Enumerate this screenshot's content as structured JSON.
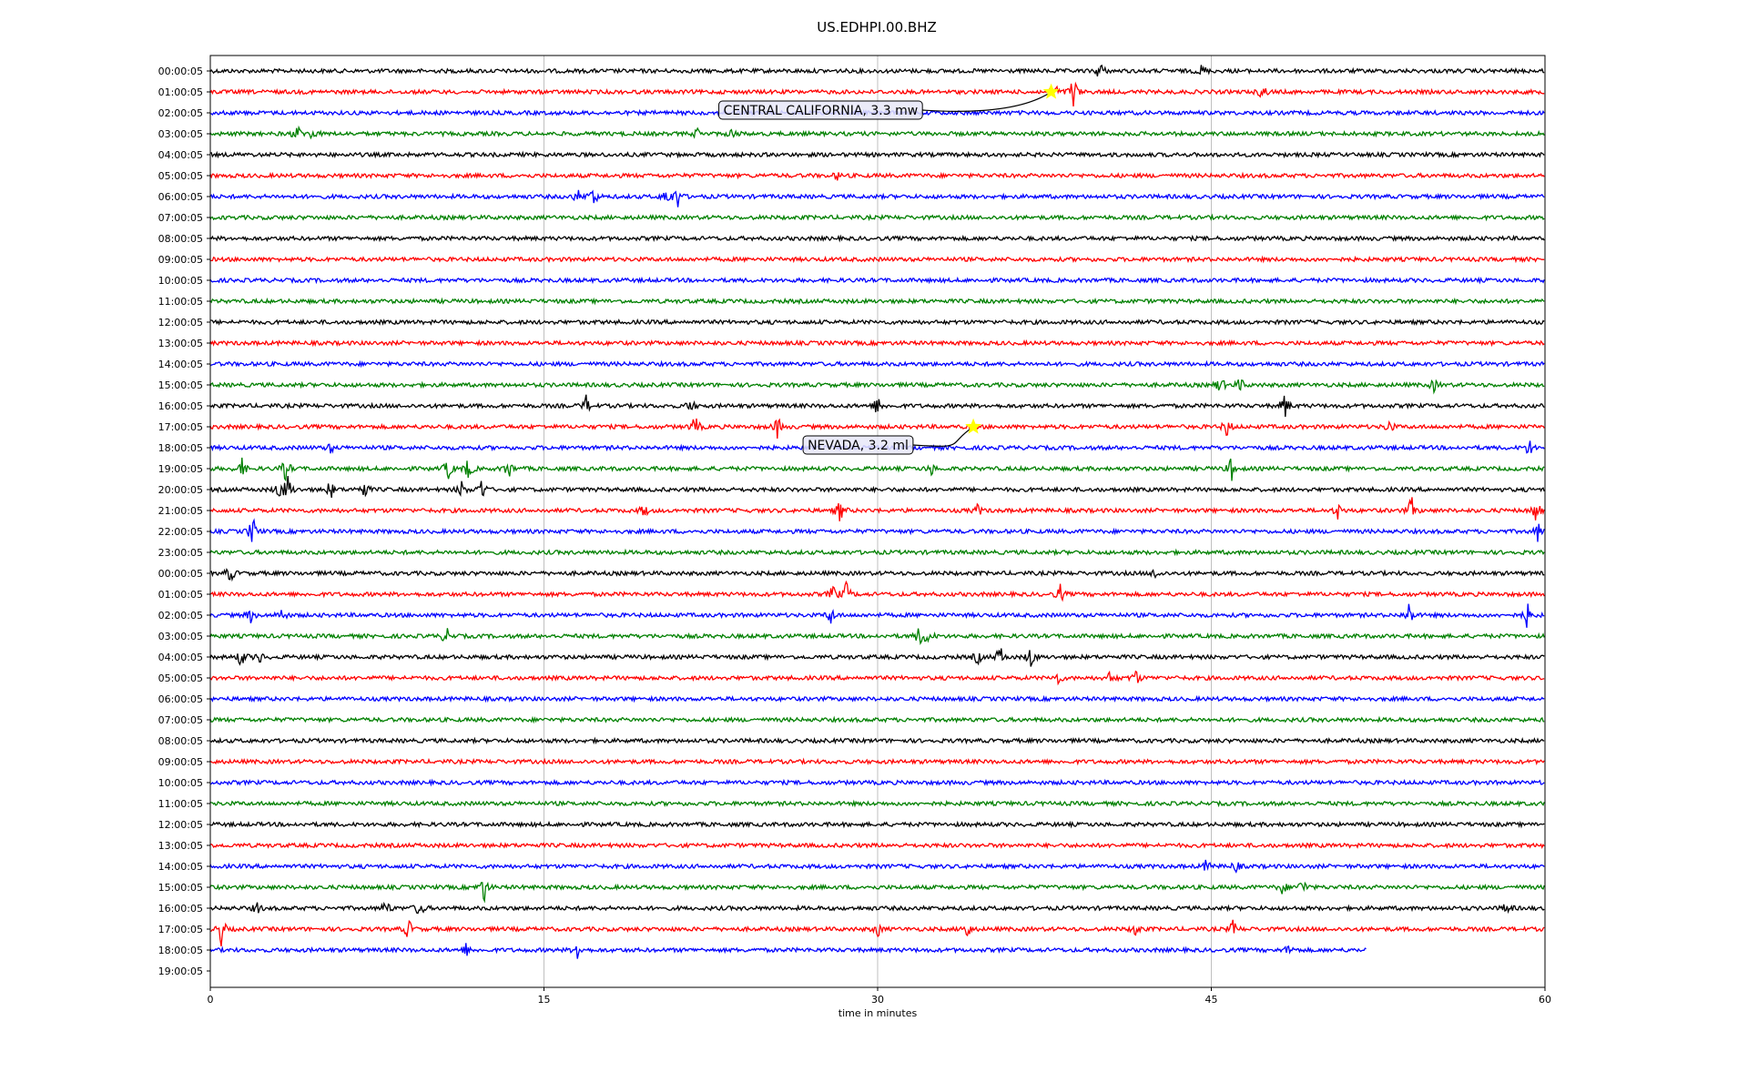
{
  "chart_data": {
    "type": "line",
    "title": "US.EDHPI.00.BHZ",
    "xlabel": "time in minutes",
    "ylabel": "",
    "xlim": [
      0,
      60
    ],
    "xticks": [
      0,
      15,
      30,
      45,
      60
    ],
    "grid": "vertical",
    "row_colors": [
      "#000000",
      "#ff0000",
      "#0000ff",
      "#008000"
    ],
    "row_labels": [
      "00:00:05",
      "01:00:05",
      "02:00:05",
      "03:00:05",
      "04:00:05",
      "05:00:05",
      "06:00:05",
      "07:00:05",
      "08:00:05",
      "09:00:05",
      "10:00:05",
      "11:00:05",
      "12:00:05",
      "13:00:05",
      "14:00:05",
      "15:00:05",
      "16:00:05",
      "17:00:05",
      "18:00:05",
      "19:00:05",
      "20:00:05",
      "21:00:05",
      "22:00:05",
      "23:00:05",
      "00:00:05",
      "01:00:05",
      "02:00:05",
      "03:00:05",
      "04:00:05",
      "05:00:05",
      "06:00:05",
      "07:00:05",
      "08:00:05",
      "09:00:05",
      "10:00:05",
      "11:00:05",
      "12:00:05",
      "13:00:05",
      "14:00:05",
      "15:00:05",
      "16:00:05",
      "17:00:05",
      "18:00:05",
      "19:00:05"
    ],
    "last_trace_end_minute": 52,
    "events": [
      {
        "row": 0,
        "minute": 40.0,
        "amp": 0.9
      },
      {
        "row": 0,
        "minute": 44.6,
        "amp": 0.6
      },
      {
        "row": 1,
        "minute": 38.0,
        "amp": 0.6
      },
      {
        "row": 1,
        "minute": 38.8,
        "amp": 1.6
      },
      {
        "row": 1,
        "minute": 47.3,
        "amp": 0.7
      },
      {
        "row": 3,
        "minute": 3.9,
        "amp": 0.8
      },
      {
        "row": 3,
        "minute": 4.6,
        "amp": 0.5
      },
      {
        "row": 3,
        "minute": 21.9,
        "amp": 0.4
      },
      {
        "row": 3,
        "minute": 23.5,
        "amp": 0.5
      },
      {
        "row": 5,
        "minute": 28.2,
        "amp": 0.3
      },
      {
        "row": 6,
        "minute": 16.5,
        "amp": 0.6
      },
      {
        "row": 6,
        "minute": 17.2,
        "amp": 1.0
      },
      {
        "row": 6,
        "minute": 20.5,
        "amp": 0.8
      },
      {
        "row": 6,
        "minute": 21.0,
        "amp": 1.0
      },
      {
        "row": 15,
        "minute": 45.4,
        "amp": 0.8
      },
      {
        "row": 15,
        "minute": 46.3,
        "amp": 0.6
      },
      {
        "row": 15,
        "minute": 55.0,
        "amp": 0.5
      },
      {
        "row": 16,
        "minute": 16.9,
        "amp": 0.8
      },
      {
        "row": 16,
        "minute": 21.6,
        "amp": 0.6
      },
      {
        "row": 16,
        "minute": 30.0,
        "amp": 0.9
      },
      {
        "row": 16,
        "minute": 48.3,
        "amp": 1.2
      },
      {
        "row": 17,
        "minute": 21.8,
        "amp": 1.0
      },
      {
        "row": 17,
        "minute": 25.5,
        "amp": 0.9
      },
      {
        "row": 17,
        "minute": 45.7,
        "amp": 0.9
      },
      {
        "row": 17,
        "minute": 53.0,
        "amp": 0.6
      },
      {
        "row": 18,
        "minute": 5.4,
        "amp": 0.4
      },
      {
        "row": 18,
        "minute": 59.3,
        "amp": 0.8
      },
      {
        "row": 19,
        "minute": 1.4,
        "amp": 0.9
      },
      {
        "row": 19,
        "minute": 3.4,
        "amp": 1.1
      },
      {
        "row": 19,
        "minute": 10.7,
        "amp": 1.0
      },
      {
        "row": 19,
        "minute": 11.6,
        "amp": 1.0
      },
      {
        "row": 19,
        "minute": 13.4,
        "amp": 0.9
      },
      {
        "row": 19,
        "minute": 32.4,
        "amp": 0.5
      },
      {
        "row": 19,
        "minute": 45.9,
        "amp": 1.0
      },
      {
        "row": 20,
        "minute": 3.1,
        "amp": 0.8
      },
      {
        "row": 20,
        "minute": 3.5,
        "amp": 1.3
      },
      {
        "row": 20,
        "minute": 5.4,
        "amp": 0.8
      },
      {
        "row": 20,
        "minute": 6.9,
        "amp": 0.9
      },
      {
        "row": 20,
        "minute": 11.3,
        "amp": 0.7
      },
      {
        "row": 20,
        "minute": 12.2,
        "amp": 1.0
      },
      {
        "row": 21,
        "minute": 19.5,
        "amp": 0.6
      },
      {
        "row": 21,
        "minute": 28.3,
        "amp": 1.0
      },
      {
        "row": 21,
        "minute": 34.5,
        "amp": 0.5
      },
      {
        "row": 21,
        "minute": 50.7,
        "amp": 0.7
      },
      {
        "row": 21,
        "minute": 54.0,
        "amp": 1.2
      },
      {
        "row": 21,
        "minute": 59.6,
        "amp": 1.0
      },
      {
        "row": 22,
        "minute": 1.9,
        "amp": 1.4
      },
      {
        "row": 22,
        "minute": 59.7,
        "amp": 0.9
      },
      {
        "row": 24,
        "minute": 0.9,
        "amp": 0.8
      },
      {
        "row": 24,
        "minute": 42.5,
        "amp": 0.5
      },
      {
        "row": 25,
        "minute": 28.0,
        "amp": 0.8
      },
      {
        "row": 25,
        "minute": 28.6,
        "amp": 1.0
      },
      {
        "row": 25,
        "minute": 38.2,
        "amp": 0.8
      },
      {
        "row": 26,
        "minute": 1.8,
        "amp": 0.6
      },
      {
        "row": 26,
        "minute": 3.2,
        "amp": 0.6
      },
      {
        "row": 26,
        "minute": 27.9,
        "amp": 0.8
      },
      {
        "row": 26,
        "minute": 53.9,
        "amp": 1.1
      },
      {
        "row": 26,
        "minute": 59.2,
        "amp": 1.0
      },
      {
        "row": 27,
        "minute": 10.6,
        "amp": 0.8
      },
      {
        "row": 27,
        "minute": 31.9,
        "amp": 1.0
      },
      {
        "row": 27,
        "minute": 32.3,
        "amp": 0.7
      },
      {
        "row": 28,
        "minute": 1.4,
        "amp": 0.9
      },
      {
        "row": 28,
        "minute": 2.2,
        "amp": 0.5
      },
      {
        "row": 28,
        "minute": 34.5,
        "amp": 0.6
      },
      {
        "row": 28,
        "minute": 35.5,
        "amp": 1.0
      },
      {
        "row": 28,
        "minute": 36.9,
        "amp": 1.0
      },
      {
        "row": 29,
        "minute": 38.1,
        "amp": 0.5
      },
      {
        "row": 29,
        "minute": 40.5,
        "amp": 0.7
      },
      {
        "row": 29,
        "minute": 41.6,
        "amp": 0.7
      },
      {
        "row": 38,
        "minute": 44.8,
        "amp": 0.6
      },
      {
        "row": 38,
        "minute": 46.1,
        "amp": 0.5
      },
      {
        "row": 39,
        "minute": 12.3,
        "amp": 1.3
      },
      {
        "row": 39,
        "minute": 48.2,
        "amp": 0.6
      },
      {
        "row": 39,
        "minute": 49.1,
        "amp": 0.8
      },
      {
        "row": 40,
        "minute": 2.1,
        "amp": 0.5
      },
      {
        "row": 40,
        "minute": 7.9,
        "amp": 0.8
      },
      {
        "row": 40,
        "minute": 9.4,
        "amp": 0.9
      },
      {
        "row": 40,
        "minute": 58.3,
        "amp": 0.6
      },
      {
        "row": 41,
        "minute": 0.5,
        "amp": 1.3
      },
      {
        "row": 41,
        "minute": 8.9,
        "amp": 0.9
      },
      {
        "row": 41,
        "minute": 30.0,
        "amp": 0.6
      },
      {
        "row": 41,
        "minute": 34.0,
        "amp": 0.9
      },
      {
        "row": 41,
        "minute": 41.6,
        "amp": 0.6
      },
      {
        "row": 41,
        "minute": 46.0,
        "amp": 0.8
      },
      {
        "row": 42,
        "minute": 11.5,
        "amp": 0.5
      },
      {
        "row": 42,
        "minute": 16.5,
        "amp": 0.8
      },
      {
        "row": 42,
        "minute": 48.5,
        "amp": 0.5
      }
    ],
    "annotations": [
      {
        "text": "CENTRAL CALIFORNIA, 3.3 mw",
        "row": 1,
        "minute": 37.8,
        "marker": "star",
        "marker_color": "#ffff00"
      },
      {
        "text": "NEVADA, 3.2 ml",
        "row": 17,
        "minute": 34.3,
        "marker": "star",
        "marker_color": "#ffff00"
      }
    ]
  }
}
